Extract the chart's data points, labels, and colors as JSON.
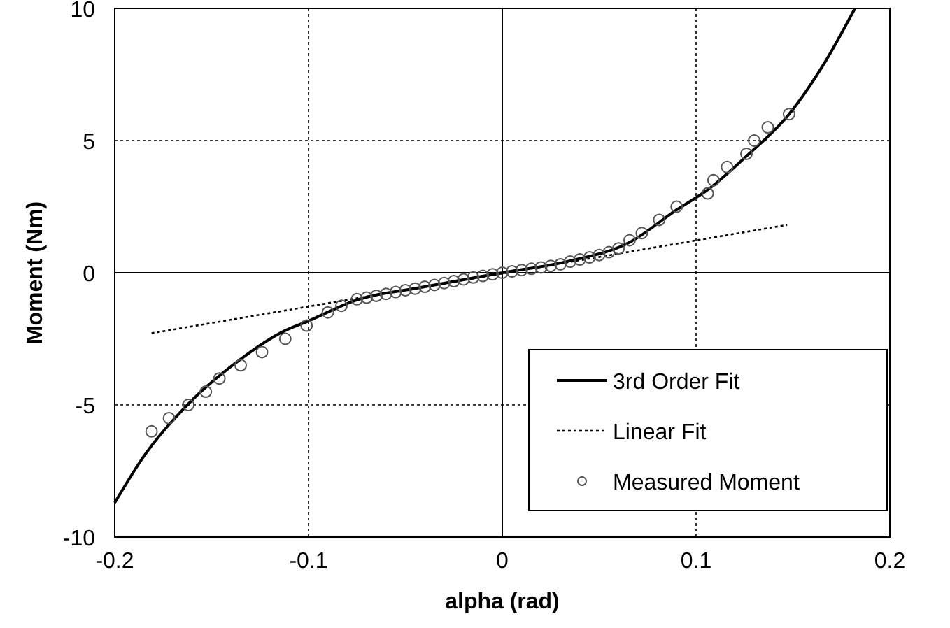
{
  "chart_data": {
    "type": "scatter",
    "xlabel": "alpha (rad)",
    "ylabel": "Moment (Nm)",
    "xlim": [
      -0.2,
      0.2
    ],
    "xticks": [
      -0.2,
      -0.1,
      0,
      0.1,
      0.2
    ],
    "ylim": [
      -10,
      10
    ],
    "yticks": [
      -10,
      -5,
      0,
      5,
      10
    ],
    "grid": true,
    "legend": "bottom right",
    "series": [
      {
        "name": "3rd Order Fit",
        "type": "line",
        "color": "#000000",
        "line_style": "solid",
        "marker": "none",
        "x": [
          -0.2,
          -0.1846,
          -0.162,
          -0.1365,
          -0.1124,
          -0.0999,
          -0.0763,
          -0.04,
          0,
          0.0344,
          0.0657,
          0.09,
          0.1066,
          0.126,
          0.148,
          0.1668,
          0.182
        ],
        "values": [
          -8.7,
          -6.9,
          -4.96,
          -3.35,
          -2.2,
          -1.82,
          -1.06,
          -0.53,
          0,
          0.44,
          1.15,
          2.38,
          3.17,
          4.41,
          6.0,
          8.0,
          10
        ]
      },
      {
        "name": "Linear Fit",
        "type": "line",
        "color": "#000000",
        "line_style": "dotted",
        "marker": "none",
        "x": [
          -0.181,
          0.147
        ],
        "values": [
          -2.29,
          1.81
        ]
      },
      {
        "name": "Measured Moment",
        "color": "#555555",
        "marker": "circle",
        "x": [
          -0.181,
          -0.172,
          -0.162,
          -0.153,
          -0.146,
          -0.135,
          -0.124,
          -0.112,
          -0.101,
          -0.09,
          -0.083,
          -0.075,
          -0.07,
          -0.065,
          -0.06,
          -0.055,
          -0.05,
          -0.045,
          -0.04,
          -0.035,
          -0.03,
          -0.025,
          -0.02,
          -0.015,
          -0.01,
          -0.005,
          0,
          0.005,
          0.01,
          0.015,
          0.02,
          0.025,
          0.03,
          0.035,
          0.04,
          0.045,
          0.05,
          0.055,
          0.06,
          0.0657,
          0.072,
          0.081,
          0.09,
          0.106,
          0.109,
          0.116,
          0.126,
          0.13,
          0.137,
          0.148
        ],
        "values": [
          -6,
          -5.5,
          -5,
          -4.5,
          -4,
          -3.5,
          -3,
          -2.5,
          -2,
          -1.5,
          -1.25,
          -1.0,
          -0.94,
          -0.87,
          -0.8,
          -0.73,
          -0.66,
          -0.6,
          -0.53,
          -0.46,
          -0.39,
          -0.32,
          -0.25,
          -0.18,
          -0.12,
          -0.06,
          0,
          0.05,
          0.1,
          0.15,
          0.2,
          0.26,
          0.32,
          0.42,
          0.5,
          0.58,
          0.67,
          0.78,
          0.92,
          1.23,
          1.5,
          2.0,
          2.5,
          3.0,
          3.5,
          4.0,
          4.5,
          5.0,
          5.5,
          6.0
        ]
      }
    ]
  }
}
